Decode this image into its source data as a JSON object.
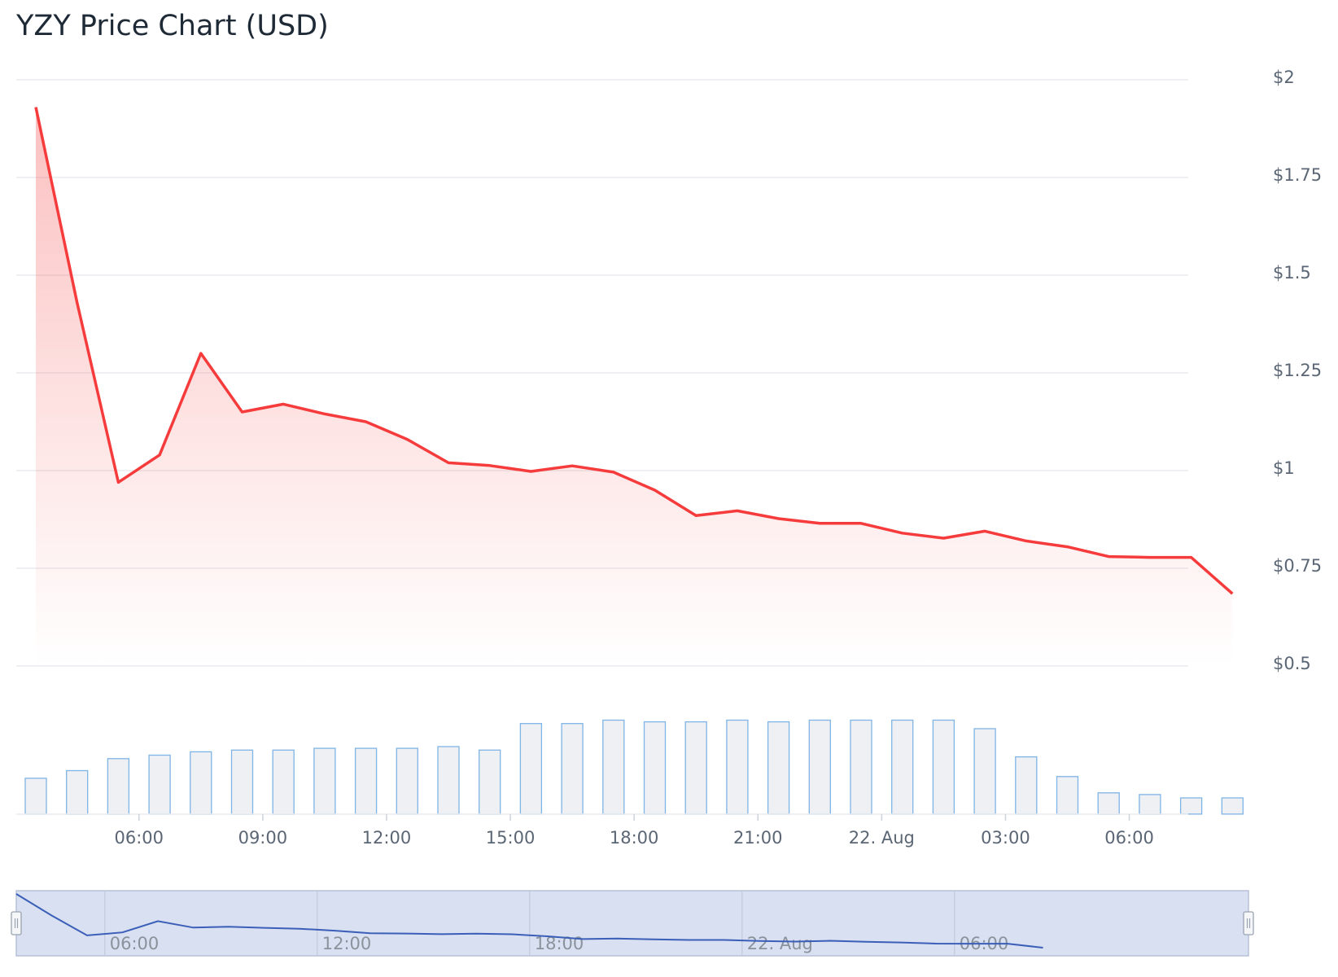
{
  "title": "YZY Price Chart (USD)",
  "colors": {
    "price_line": "#f53b3b",
    "volume_fill": "#eef0f3",
    "volume_stroke": "#7fb4e6",
    "navigator_fill": "#d8e0f1",
    "navigator_line": "#3b5fb8",
    "grid": "#e9ecef"
  },
  "chart_data": {
    "type": "line",
    "title": "YZY Price Chart (USD)",
    "y_axis": {
      "ticks": [
        "$2",
        "$1.75",
        "$1.5",
        "$1.25",
        "$1",
        "$0.75",
        "$0.5"
      ],
      "tick_values": [
        2,
        1.75,
        1.5,
        1.25,
        1,
        0.75,
        0.5
      ],
      "ylim": [
        0.5,
        2
      ],
      "position": "right"
    },
    "x_axis": {
      "ticks": [
        "06:00",
        "09:00",
        "12:00",
        "15:00",
        "18:00",
        "21:00",
        "22. Aug",
        "03:00",
        "06:00"
      ],
      "tick_hours": [
        6,
        9,
        12,
        15,
        18,
        21,
        24,
        27,
        30
      ]
    },
    "series": [
      {
        "kind": "price",
        "x_hours": [
          3.5,
          4.5,
          5.5,
          6.5,
          7.5,
          8.5,
          9.5,
          10.5,
          11.5,
          12.5,
          13.5,
          14.5,
          15.5,
          16.5,
          17.5,
          18.5,
          19.5,
          20.5,
          21.5,
          22.5,
          23.5,
          24.5,
          25.5,
          26.5,
          27.5,
          28.5,
          29.5,
          30.5,
          31.5,
          32.5
        ],
        "values": [
          1.93,
          1.43,
          0.97,
          1.04,
          1.3,
          1.15,
          1.17,
          1.145,
          1.125,
          1.08,
          1.02,
          1.013,
          0.998,
          1.012,
          0.996,
          0.95,
          0.885,
          0.897,
          0.877,
          0.865,
          0.865,
          0.84,
          0.827,
          0.845,
          0.82,
          0.805,
          0.78,
          0.778,
          0.778,
          0.685
        ]
      },
      {
        "kind": "volume",
        "x_hours": [
          3.5,
          4.5,
          5.5,
          6.5,
          7.5,
          8.5,
          9.5,
          10.5,
          11.5,
          12.5,
          13.5,
          14.5,
          15.5,
          16.5,
          17.5,
          18.5,
          19.5,
          20.5,
          21.5,
          22.5,
          23.5,
          24.5,
          25.5,
          26.5,
          27.5,
          28.5,
          29.5,
          30.5,
          31.5,
          32.5
        ],
        "values": [
          42,
          51,
          65,
          69,
          73,
          75,
          75,
          77,
          77,
          77,
          79,
          75,
          106,
          106,
          110,
          108,
          108,
          110,
          108,
          110,
          110,
          110,
          110,
          100,
          67,
          44,
          25,
          23,
          19,
          19
        ]
      }
    ],
    "navigator": {
      "ticks": [
        "06:00",
        "12:00",
        "18:00",
        "22. Aug",
        "06:00"
      ],
      "tick_hours": [
        6,
        12,
        18,
        24,
        30
      ]
    },
    "grid": true,
    "legend": "none"
  }
}
